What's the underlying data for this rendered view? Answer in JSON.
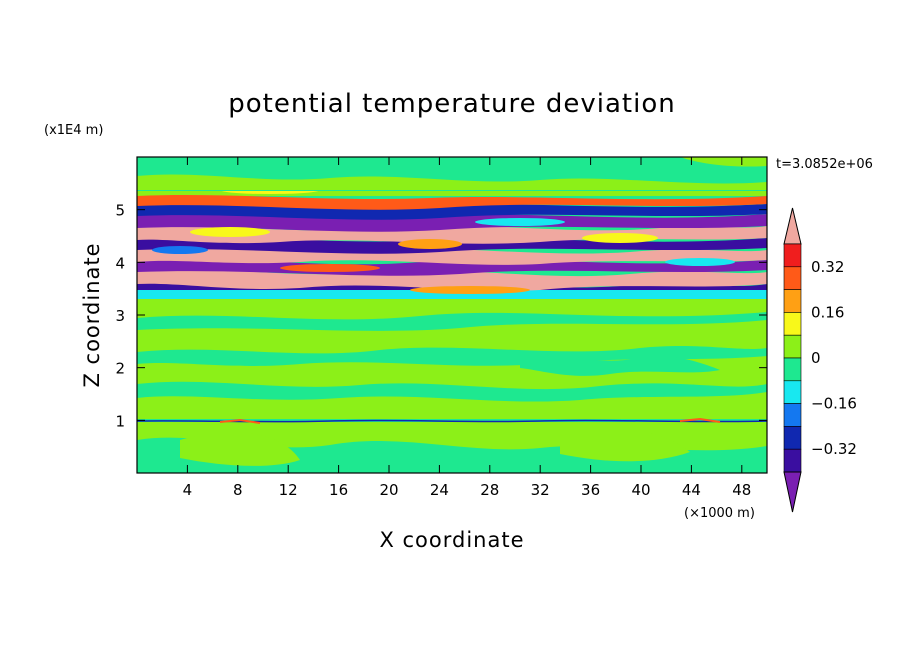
{
  "chart_data": {
    "type": "heatmap",
    "subtype": "filled-contour",
    "title": "potential temperature deviation",
    "xlabel": "X coordinate",
    "ylabel": "Z coordinate",
    "x_unit": "(×1000 m)",
    "y_unit": "(x1E4 m)",
    "time_label": "t=3.0852e+06",
    "xlim": [
      0,
      50
    ],
    "ylim": [
      0,
      6
    ],
    "x_ticks": [
      4,
      8,
      12,
      16,
      20,
      24,
      28,
      32,
      36,
      40,
      44,
      48
    ],
    "y_ticks": [
      1,
      2,
      3,
      4,
      5
    ],
    "colorbar": {
      "labels": [
        {
          "value": 0.32,
          "text": "0.32"
        },
        {
          "value": 0.16,
          "text": "0.16"
        },
        {
          "value": 0,
          "text": "0"
        },
        {
          "value": -0.16,
          "text": "−0.16"
        },
        {
          "value": -0.32,
          "text": "−0.32"
        }
      ],
      "levels": [
        -0.4,
        -0.32,
        -0.24,
        -0.16,
        -0.08,
        0,
        0.08,
        0.16,
        0.24,
        0.32,
        0.4
      ],
      "colors": [
        "#7a1fb2",
        "#3a0ea0",
        "#1028b0",
        "#1478f0",
        "#18e8f0",
        "#1ee890",
        "#8cf018",
        "#f8f81a",
        "#ffa014",
        "#ff5a18",
        "#f01e1e",
        "#f0a8a0"
      ]
    },
    "bands": [
      {
        "z": [
          0,
          0.93
        ],
        "level": 1
      },
      {
        "z": [
          0.93,
          1.02
        ],
        "level": 0
      },
      {
        "z": [
          1.02,
          3.3
        ],
        "level": 1
      },
      {
        "z": [
          3.3,
          3.5
        ],
        "level": 0
      },
      {
        "z": [
          3.5,
          5.4
        ],
        "level": "mixed"
      },
      {
        "z": [
          5.4,
          6.0
        ],
        "level": 0
      }
    ]
  }
}
